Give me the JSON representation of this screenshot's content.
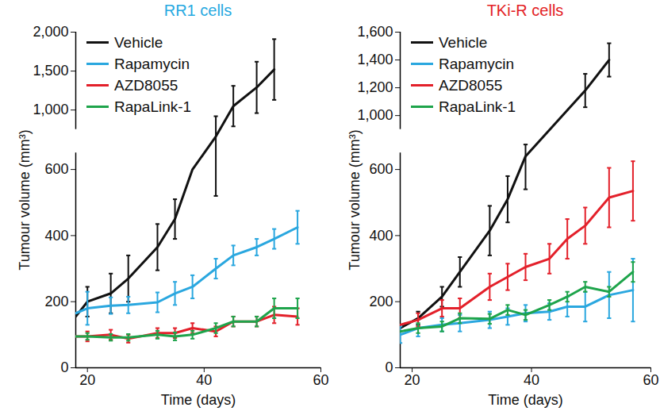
{
  "chart_data": [
    {
      "type": "line",
      "title": "RR1 cells",
      "x_label": "Time (days)",
      "y_label": "Tumour volume (mm³)",
      "xlim": [
        18,
        60
      ],
      "xticks": [
        20,
        40,
        60
      ],
      "ylim": [
        0,
        2000
      ],
      "yticks": [
        0,
        200,
        400,
        600,
        {
          "value": 1000,
          "label": "1,000"
        },
        {
          "value": 1500,
          "label": "1,500"
        },
        {
          "value": 2000,
          "label": "2,000"
        }
      ],
      "series": [
        {
          "name": "Vehicle",
          "color": "#111111",
          "x": [
            18,
            20,
            24,
            27,
            32,
            35,
            38,
            42,
            45,
            49,
            52
          ],
          "values": [
            155,
            200,
            225,
            270,
            365,
            450,
            600,
            720,
            1050,
            1290,
            1520
          ],
          "errors": [
            null,
            45,
            60,
            70,
            70,
            60,
            null,
            200,
            260,
            330,
            390
          ]
        },
        {
          "name": "Rapamycin",
          "color": "#2aa7df",
          "x": [
            18,
            20,
            24,
            27,
            32,
            35,
            38,
            42,
            45,
            49,
            52,
            56
          ],
          "values": [
            165,
            180,
            188,
            190,
            198,
            225,
            245,
            300,
            340,
            365,
            390,
            425
          ],
          "errors": [
            null,
            50,
            25,
            25,
            30,
            35,
            35,
            30,
            30,
            25,
            30,
            50
          ]
        },
        {
          "name": "AZD8055",
          "color": "#e3202a",
          "x": [
            18,
            20,
            24,
            27,
            32,
            35,
            38,
            42,
            45,
            49,
            52,
            56
          ],
          "values": [
            95,
            95,
            100,
            88,
            105,
            105,
            120,
            110,
            140,
            140,
            160,
            155
          ],
          "errors": [
            null,
            15,
            15,
            12,
            15,
            15,
            15,
            15,
            15,
            15,
            25,
            25
          ]
        },
        {
          "name": "RapaLink-1",
          "color": "#1ea44b",
          "x": [
            18,
            20,
            24,
            27,
            32,
            35,
            38,
            42,
            45,
            49,
            52,
            56
          ],
          "values": [
            95,
            95,
            92,
            92,
            100,
            95,
            100,
            120,
            140,
            140,
            180,
            180
          ],
          "errors": [
            null,
            10,
            10,
            10,
            12,
            12,
            12,
            15,
            15,
            15,
            30,
            30
          ]
        }
      ]
    },
    {
      "type": "line",
      "title": "TKi-R cells",
      "x_label": "Time (days)",
      "y_label": "Tumour volume (mm³)",
      "xlim": [
        18,
        60
      ],
      "xticks": [
        20,
        40,
        60
      ],
      "ylim": [
        0,
        1600
      ],
      "yticks": [
        0,
        200,
        400,
        600,
        {
          "value": 1000,
          "label": "1,000"
        },
        {
          "value": 1200,
          "label": "1,200"
        },
        {
          "value": 1400,
          "label": "1,400"
        },
        {
          "value": 1600,
          "label": "1,600"
        }
      ],
      "series": [
        {
          "name": "Vehicle",
          "color": "#111111",
          "x": [
            18,
            21,
            25,
            28,
            33,
            36,
            39,
            49,
            53
          ],
          "values": [
            120,
            150,
            215,
            290,
            415,
            510,
            640,
            1180,
            1400
          ],
          "errors": [
            null,
            20,
            30,
            45,
            75,
            70,
            100,
            120,
            120
          ]
        },
        {
          "name": "Rapamycin",
          "color": "#2aa7df",
          "x": [
            18,
            21,
            25,
            28,
            33,
            36,
            39,
            43,
            46,
            49,
            53,
            57
          ],
          "values": [
            100,
            120,
            130,
            135,
            145,
            155,
            165,
            170,
            185,
            185,
            220,
            235
          ],
          "errors": [
            25,
            25,
            20,
            25,
            25,
            25,
            25,
            25,
            30,
            45,
            70,
            95
          ]
        },
        {
          "name": "AZD8055",
          "color": "#e3202a",
          "x": [
            18,
            21,
            25,
            28,
            33,
            36,
            39,
            43,
            46,
            49,
            53,
            57
          ],
          "values": [
            130,
            145,
            180,
            180,
            245,
            275,
            305,
            330,
            390,
            430,
            515,
            535
          ],
          "errors": [
            null,
            20,
            25,
            30,
            40,
            40,
            40,
            45,
            60,
            55,
            90,
            90
          ]
        },
        {
          "name": "RapaLink-1",
          "color": "#1ea44b",
          "x": [
            18,
            21,
            25,
            28,
            33,
            36,
            39,
            43,
            46,
            49,
            53,
            57
          ],
          "values": [
            110,
            120,
            125,
            150,
            148,
            175,
            160,
            190,
            215,
            245,
            230,
            290
          ],
          "errors": [
            null,
            15,
            15,
            15,
            15,
            15,
            15,
            15,
            15,
            15,
            15,
            30
          ]
        }
      ]
    }
  ]
}
